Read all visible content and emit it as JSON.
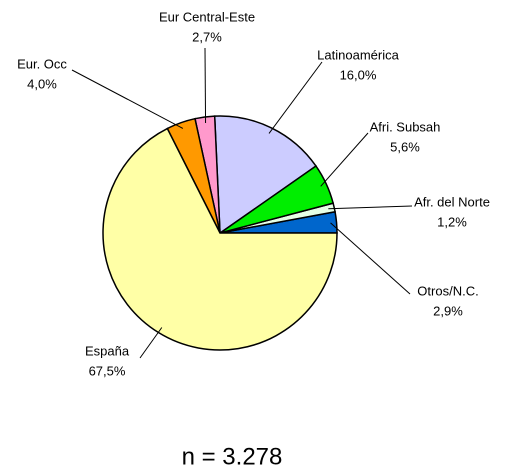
{
  "chart_data": {
    "type": "pie",
    "categories": [
      "Otros/N.C.",
      "Afr. del Norte",
      "Afri. Subsah",
      "Latinoamérica",
      "Eur Central-Este",
      "Eur. Occ",
      "España"
    ],
    "values": [
      2.9,
      1.2,
      5.6,
      16.0,
      2.7,
      4.0,
      67.5
    ],
    "value_labels": [
      "2,9%",
      "1,2%",
      "5,6%",
      "16,0%",
      "2,7%",
      "4,0%",
      "67,5%"
    ],
    "colors": [
      "#0066cc",
      "#e6ffe6",
      "#00ee00",
      "#ccccff",
      "#ff99cc",
      "#ff9900",
      "#ffffa6"
    ],
    "annotation": "n = 3.278"
  }
}
